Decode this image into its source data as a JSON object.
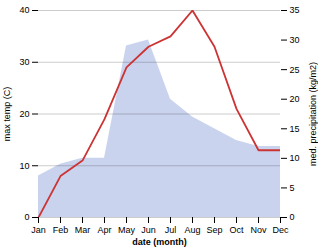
{
  "chart_data": {
    "type": "line",
    "categories": [
      "Jan",
      "Feb",
      "Mar",
      "Apr",
      "May",
      "Jun",
      "Jul",
      "Aug",
      "Sep",
      "Oct",
      "Nov",
      "Dec"
    ],
    "xlabel": "date (month)",
    "ylabel": "max temp (C)",
    "y2label": "med. precipitation (kg/m2)",
    "ylim": [
      0,
      40
    ],
    "yticks": [
      0,
      10,
      20,
      30,
      40
    ],
    "y2lim": [
      0,
      35
    ],
    "y2ticks": [
      0,
      5,
      10,
      15,
      20,
      25,
      30,
      35
    ],
    "grid": true,
    "series": [
      {
        "type": "area",
        "axis": "y2",
        "color": "#b8c4e8",
        "values": [
          7,
          9,
          10,
          10,
          29,
          30,
          20,
          17,
          15,
          13,
          12,
          12
        ]
      },
      {
        "type": "line",
        "color": "#cc3333",
        "values": [
          0,
          8,
          11,
          19,
          29,
          33,
          35,
          40,
          33,
          21,
          13,
          13
        ]
      }
    ]
  }
}
